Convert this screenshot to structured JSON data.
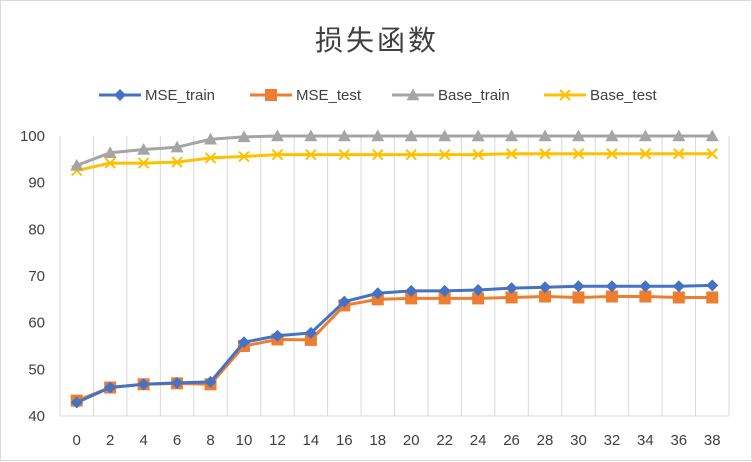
{
  "chart_data": {
    "type": "line",
    "title": "损失函数",
    "xlabel": "",
    "ylabel": "",
    "x": [
      0,
      2,
      4,
      6,
      8,
      10,
      12,
      14,
      16,
      18,
      20,
      22,
      24,
      26,
      28,
      30,
      32,
      34,
      36,
      38
    ],
    "ylim": [
      40,
      100
    ],
    "yticks": [
      40,
      50,
      60,
      70,
      80,
      90,
      100
    ],
    "grid": "vertical",
    "legend_position": "top",
    "series": [
      {
        "name": "MSE_train",
        "color": "#4472c4",
        "marker": "diamond",
        "values": [
          42.9,
          46.1,
          46.8,
          47.1,
          47.3,
          55.8,
          57.2,
          57.8,
          64.5,
          66.3,
          66.8,
          66.8,
          67.0,
          67.4,
          67.6,
          67.8,
          67.8,
          67.8,
          67.8,
          68.0
        ]
      },
      {
        "name": "MSE_test",
        "color": "#ed7d31",
        "marker": "square",
        "values": [
          43.3,
          46.1,
          46.8,
          47.0,
          46.8,
          55.0,
          56.4,
          56.3,
          63.7,
          65.0,
          65.2,
          65.2,
          65.2,
          65.4,
          65.6,
          65.4,
          65.6,
          65.6,
          65.4,
          65.4
        ]
      },
      {
        "name": "Base_train",
        "color": "#a5a5a5",
        "marker": "triangle",
        "values": [
          93.7,
          96.4,
          97.1,
          97.6,
          99.3,
          99.8,
          100,
          100,
          100,
          100,
          100,
          100,
          100,
          100,
          100,
          100,
          100,
          100,
          100,
          100
        ]
      },
      {
        "name": "Base_test",
        "color": "#ffc000",
        "marker": "x",
        "values": [
          92.6,
          94.2,
          94.2,
          94.4,
          95.3,
          95.6,
          96.0,
          96.0,
          96.0,
          96.0,
          96.0,
          96.0,
          96.0,
          96.2,
          96.2,
          96.2,
          96.2,
          96.2,
          96.2,
          96.2
        ]
      }
    ]
  }
}
